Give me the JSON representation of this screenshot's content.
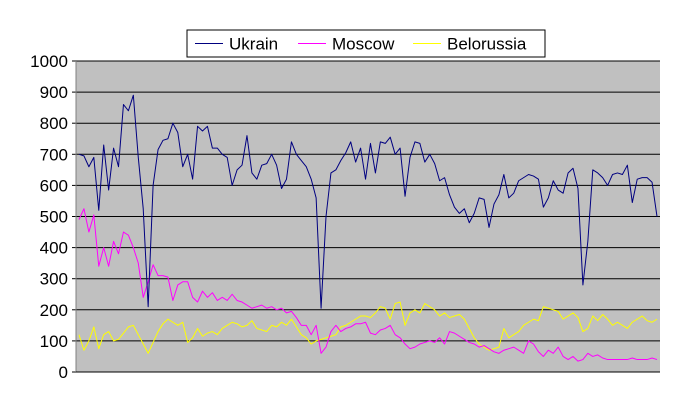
{
  "chart_data": {
    "type": "line",
    "title": "",
    "xlabel": "",
    "ylabel": "",
    "ylim": [
      0,
      1000
    ],
    "yticks": [
      0,
      100,
      200,
      300,
      400,
      500,
      600,
      700,
      800,
      900,
      1000
    ],
    "yticks_text": [
      "0",
      "100",
      "200",
      "300",
      "400",
      "500",
      "600",
      "700",
      "800",
      "900",
      "1000"
    ],
    "grid": "horizontal",
    "plot_background": "#C0C0C0",
    "legend_position": "top-center",
    "series": [
      {
        "name": "Ukrain",
        "color": "#000080",
        "values": [
          700,
          695,
          660,
          690,
          520,
          730,
          585,
          720,
          660,
          860,
          840,
          890,
          690,
          525,
          210,
          600,
          715,
          745,
          750,
          800,
          770,
          660,
          700,
          620,
          790,
          775,
          790,
          720,
          720,
          700,
          690,
          600,
          650,
          665,
          760,
          640,
          620,
          665,
          670,
          700,
          665,
          590,
          620,
          740,
          700,
          680,
          660,
          620,
          560,
          205,
          500,
          640,
          650,
          680,
          705,
          740,
          675,
          720,
          620,
          735,
          640,
          740,
          735,
          755,
          700,
          720,
          565,
          690,
          740,
          735,
          675,
          700,
          670,
          615,
          625,
          570,
          530,
          510,
          525,
          480,
          510,
          560,
          555,
          465,
          540,
          570,
          635,
          560,
          575,
          615,
          625,
          635,
          630,
          620,
          530,
          560,
          615,
          585,
          575,
          640,
          655,
          590,
          280,
          420,
          650,
          640,
          625,
          600,
          635,
          640,
          635,
          665,
          545,
          620,
          625,
          625,
          610,
          500
        ]
      },
      {
        "name": "Moscow",
        "color": "#FF00FF",
        "values": [
          490,
          525,
          450,
          505,
          340,
          400,
          340,
          420,
          380,
          450,
          440,
          400,
          350,
          240,
          290,
          345,
          310,
          310,
          305,
          230,
          280,
          290,
          290,
          240,
          225,
          260,
          240,
          255,
          230,
          240,
          230,
          250,
          230,
          225,
          215,
          205,
          210,
          215,
          205,
          210,
          200,
          205,
          190,
          195,
          175,
          150,
          150,
          120,
          150,
          60,
          80,
          130,
          150,
          130,
          140,
          145,
          155,
          155,
          160,
          125,
          120,
          135,
          140,
          150,
          120,
          110,
          90,
          75,
          80,
          90,
          95,
          100,
          95,
          110,
          90,
          130,
          125,
          115,
          105,
          95,
          90,
          80,
          85,
          75,
          65,
          60,
          70,
          75,
          80,
          70,
          60,
          100,
          90,
          65,
          50,
          70,
          60,
          80,
          50,
          40,
          50,
          35,
          40,
          60,
          50,
          55,
          45,
          40,
          40,
          40,
          40,
          40,
          45,
          40,
          40,
          40,
          45,
          40
        ]
      },
      {
        "name": "Belorussia",
        "color": "#FFFF00",
        "values": [
          120,
          70,
          100,
          145,
          75,
          120,
          130,
          100,
          105,
          125,
          145,
          150,
          120,
          90,
          60,
          95,
          130,
          155,
          170,
          160,
          150,
          160,
          95,
          110,
          140,
          115,
          125,
          130,
          120,
          140,
          150,
          160,
          155,
          145,
          150,
          165,
          140,
          135,
          130,
          150,
          145,
          160,
          150,
          170,
          145,
          120,
          110,
          90,
          100,
          105,
          110,
          115,
          120,
          145,
          150,
          160,
          170,
          180,
          180,
          175,
          190,
          210,
          205,
          170,
          220,
          225,
          150,
          190,
          200,
          190,
          220,
          210,
          200,
          180,
          190,
          175,
          180,
          185,
          170,
          140,
          110,
          90,
          80,
          70,
          75,
          80,
          140,
          110,
          120,
          130,
          150,
          160,
          170,
          165,
          210,
          205,
          200,
          195,
          170,
          180,
          190,
          175,
          130,
          140,
          180,
          165,
          185,
          170,
          150,
          160,
          150,
          140,
          160,
          170,
          180,
          165,
          160,
          170
        ]
      }
    ]
  }
}
